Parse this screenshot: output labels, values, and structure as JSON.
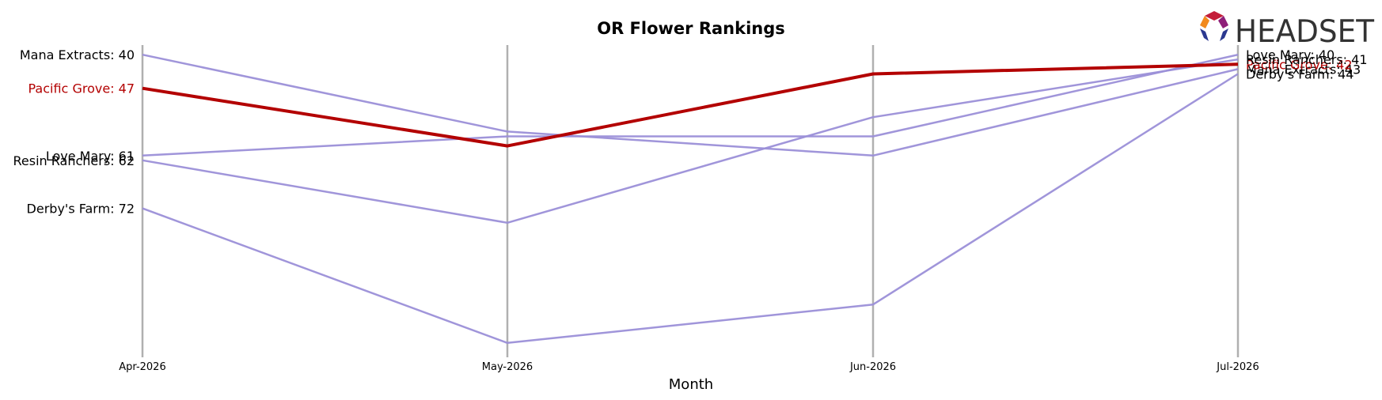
{
  "brand": {
    "wordmark": "HEADSET"
  },
  "chart_data": {
    "type": "line",
    "title": "OR Flower Rankings",
    "xlabel": "Month",
    "ylabel": "",
    "categories": [
      "Apr-2026",
      "May-2026",
      "Jun-2026",
      "Jul-2026"
    ],
    "y_axis": {
      "inverted": true,
      "range": [
        38,
        103
      ],
      "visible": false
    },
    "grid": {
      "vertical": true,
      "horizontal": false
    },
    "highlight_color": "#b30000",
    "series_color": "#9b8fd8",
    "series": [
      {
        "name": "Mana Extracts",
        "values": [
          40,
          56,
          61,
          43
        ],
        "highlight": false
      },
      {
        "name": "Pacific Grove",
        "values": [
          47,
          59,
          44,
          42
        ],
        "highlight": true
      },
      {
        "name": "Love Mary",
        "values": [
          61,
          57,
          57,
          40
        ],
        "highlight": false
      },
      {
        "name": "Resin Ranchers",
        "values": [
          62,
          75,
          53,
          41
        ],
        "highlight": false
      },
      {
        "name": "Derby's Farm",
        "values": [
          72,
          100,
          92,
          44
        ],
        "highlight": false
      }
    ]
  }
}
